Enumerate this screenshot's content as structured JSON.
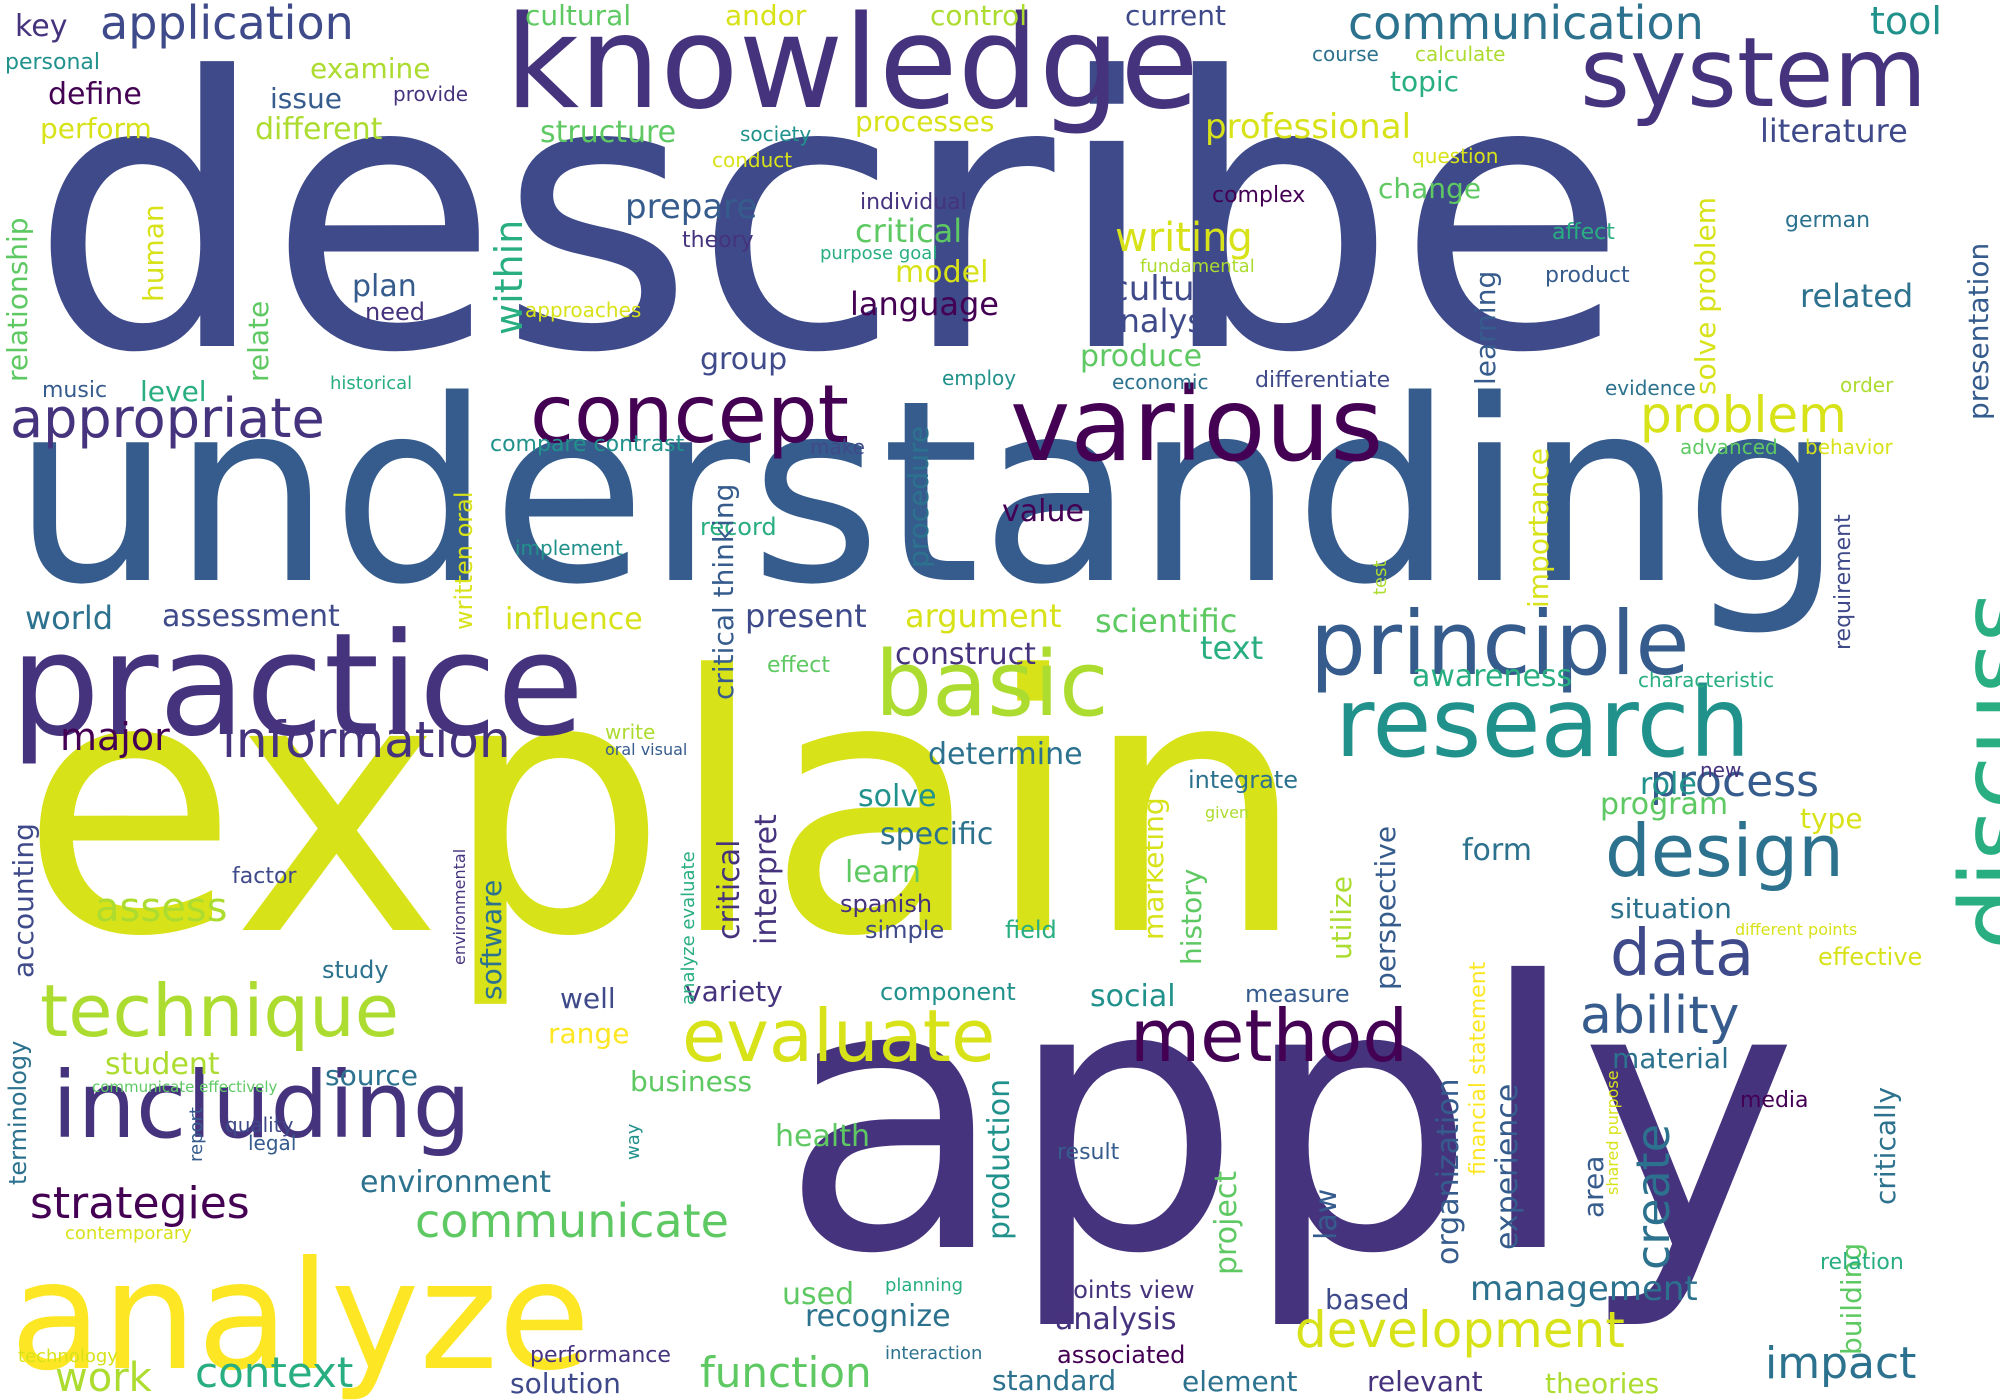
{
  "palette": {
    "v0": "#440154",
    "v1": "#46337e",
    "v2": "#3f4a8a",
    "v3": "#365c8d",
    "v4": "#2c728e",
    "v5": "#21918c",
    "v6": "#28ae80",
    "v7": "#5ec962",
    "v8": "#addc30",
    "v9": "#d8e219",
    "v10": "#fde725"
  },
  "words": [
    {
      "text": "describe",
      "color": "v2"
    },
    {
      "text": "understanding",
      "color": "v3"
    },
    {
      "text": "explain",
      "color": "v9"
    },
    {
      "text": "apply",
      "color": "v1"
    },
    {
      "text": "knowledge",
      "color": "v1"
    },
    {
      "text": "practice",
      "color": "v1"
    },
    {
      "text": "various",
      "color": "v0"
    },
    {
      "text": "analyze",
      "color": "v10"
    },
    {
      "text": "system",
      "color": "v1"
    },
    {
      "text": "concept",
      "color": "v0"
    },
    {
      "text": "principle",
      "color": "v3"
    },
    {
      "text": "research",
      "color": "v5"
    },
    {
      "text": "basic",
      "color": "v8"
    },
    {
      "text": "discuss",
      "color": "v6"
    },
    {
      "text": "including",
      "color": "v1"
    },
    {
      "text": "technique",
      "color": "v8"
    },
    {
      "text": "evaluate",
      "color": "v9"
    },
    {
      "text": "method",
      "color": "v0"
    },
    {
      "text": "design",
      "color": "v4"
    },
    {
      "text": "data",
      "color": "v2"
    },
    {
      "text": "appropriate",
      "color": "v1"
    },
    {
      "text": "information",
      "color": "v1"
    },
    {
      "text": "communication",
      "color": "v4"
    },
    {
      "text": "application",
      "color": "v2"
    },
    {
      "text": "problem",
      "color": "v9"
    },
    {
      "text": "development",
      "color": "v9"
    },
    {
      "text": "ability",
      "color": "v3"
    },
    {
      "text": "communicate",
      "color": "v7"
    },
    {
      "text": "strategies",
      "color": "v0"
    },
    {
      "text": "process",
      "color": "v3"
    },
    {
      "text": "context",
      "color": "v6"
    },
    {
      "text": "function",
      "color": "v7"
    },
    {
      "text": "impact",
      "color": "v4"
    },
    {
      "text": "create",
      "color": "v4"
    },
    {
      "text": "writing",
      "color": "v9"
    },
    {
      "text": "tool",
      "color": "v5"
    },
    {
      "text": "professional",
      "color": "v9"
    },
    {
      "text": "work",
      "color": "v8"
    },
    {
      "text": "assess",
      "color": "v8"
    },
    {
      "text": "management",
      "color": "v4"
    },
    {
      "text": "major",
      "color": "v0"
    },
    {
      "text": "culture",
      "color": "v2"
    },
    {
      "text": "literature",
      "color": "v2"
    },
    {
      "text": "critical",
      "color": "v7"
    },
    {
      "text": "within",
      "color": "v6"
    },
    {
      "text": "prepare",
      "color": "v3"
    },
    {
      "text": "model",
      "color": "v9"
    },
    {
      "text": "language",
      "color": "v0"
    },
    {
      "text": "analyse",
      "color": "v2"
    },
    {
      "text": "produce",
      "color": "v7"
    },
    {
      "text": "related",
      "color": "v4"
    },
    {
      "text": "world",
      "color": "v4"
    },
    {
      "text": "assessment",
      "color": "v2"
    },
    {
      "text": "present",
      "color": "v2"
    },
    {
      "text": "argument",
      "color": "v9"
    },
    {
      "text": "scientific",
      "color": "v7"
    },
    {
      "text": "construct",
      "color": "v1"
    },
    {
      "text": "text",
      "color": "v6"
    },
    {
      "text": "awareness",
      "color": "v6"
    },
    {
      "text": "influence",
      "color": "v9"
    },
    {
      "text": "determine",
      "color": "v4"
    },
    {
      "text": "solve",
      "color": "v5"
    },
    {
      "text": "specific",
      "color": "v4"
    },
    {
      "text": "learn",
      "color": "v7"
    },
    {
      "text": "role",
      "color": "v5"
    },
    {
      "text": "program",
      "color": "v7"
    },
    {
      "text": "type",
      "color": "v9"
    },
    {
      "text": "form",
      "color": "v4"
    },
    {
      "text": "situation",
      "color": "v4"
    },
    {
      "text": "variety",
      "color": "v1"
    },
    {
      "text": "well",
      "color": "v2"
    },
    {
      "text": "range",
      "color": "v10"
    },
    {
      "text": "social",
      "color": "v5"
    },
    {
      "text": "material",
      "color": "v4"
    },
    {
      "text": "student",
      "color": "v8"
    },
    {
      "text": "source",
      "color": "v4"
    },
    {
      "text": "business",
      "color": "v7"
    },
    {
      "text": "health",
      "color": "v7"
    },
    {
      "text": "environment",
      "color": "v4"
    },
    {
      "text": "recognize",
      "color": "v4"
    },
    {
      "text": "used",
      "color": "v7"
    },
    {
      "text": "analysis",
      "color": "v1"
    },
    {
      "text": "based",
      "color": "v2"
    },
    {
      "text": "standard",
      "color": "v4"
    },
    {
      "text": "element",
      "color": "v4"
    },
    {
      "text": "relevant",
      "color": "v1"
    },
    {
      "text": "theories",
      "color": "v8"
    },
    {
      "text": "solution",
      "color": "v2"
    },
    {
      "text": "effective",
      "color": "v9"
    },
    {
      "text": "key",
      "color": "v1"
    },
    {
      "text": "examine",
      "color": "v8"
    },
    {
      "text": "issue",
      "color": "v3"
    },
    {
      "text": "define",
      "color": "v0"
    },
    {
      "text": "perform",
      "color": "v9"
    },
    {
      "text": "different",
      "color": "v8"
    },
    {
      "text": "structure",
      "color": "v7"
    },
    {
      "text": "cultural",
      "color": "v7"
    },
    {
      "text": "andor",
      "color": "v9"
    },
    {
      "text": "control",
      "color": "v8"
    },
    {
      "text": "current",
      "color": "v2"
    },
    {
      "text": "topic",
      "color": "v6"
    },
    {
      "text": "processes",
      "color": "v9"
    },
    {
      "text": "change",
      "color": "v7"
    },
    {
      "text": "plan",
      "color": "v3"
    },
    {
      "text": "need",
      "color": "v1"
    },
    {
      "text": "human",
      "color": "v9"
    },
    {
      "text": "relate",
      "color": "v7"
    },
    {
      "text": "relationship",
      "color": "v7"
    },
    {
      "text": "group",
      "color": "v2"
    },
    {
      "text": "level",
      "color": "v6"
    },
    {
      "text": "music",
      "color": "v3"
    },
    {
      "text": "compare contrast",
      "color": "v5"
    },
    {
      "text": "written oral",
      "color": "v9"
    },
    {
      "text": "record",
      "color": "v6"
    },
    {
      "text": "implement",
      "color": "v5"
    },
    {
      "text": "value",
      "color": "v0"
    },
    {
      "text": "procedure",
      "color": "v4"
    },
    {
      "text": "critical thinking",
      "color": "v3"
    },
    {
      "text": "learning",
      "color": "v3"
    },
    {
      "text": "solve problem",
      "color": "v9"
    },
    {
      "text": "importance",
      "color": "v9"
    },
    {
      "text": "presentation",
      "color": "v3"
    },
    {
      "text": "requirement",
      "color": "v2"
    },
    {
      "text": "marketing",
      "color": "v9"
    },
    {
      "text": "history",
      "color": "v7"
    },
    {
      "text": "utilize",
      "color": "v8"
    },
    {
      "text": "perspective",
      "color": "v3"
    },
    {
      "text": "accounting",
      "color": "v2"
    },
    {
      "text": "software",
      "color": "v4"
    },
    {
      "text": "interpret",
      "color": "v1"
    },
    {
      "text": "critical",
      "color": "v1"
    },
    {
      "text": "integrate",
      "color": "v4"
    },
    {
      "text": "factor",
      "color": "v2"
    },
    {
      "text": "spanish",
      "color": "v1"
    },
    {
      "text": "simple",
      "color": "v2"
    },
    {
      "text": "field",
      "color": "v6"
    },
    {
      "text": "component",
      "color": "v5"
    },
    {
      "text": "measure",
      "color": "v3"
    },
    {
      "text": "study",
      "color": "v4"
    },
    {
      "text": "organization",
      "color": "v3"
    },
    {
      "text": "experience",
      "color": "v3"
    },
    {
      "text": "financial statement",
      "color": "v10"
    },
    {
      "text": "area",
      "color": "v3"
    },
    {
      "text": "critically",
      "color": "v4"
    },
    {
      "text": "building",
      "color": "v7"
    },
    {
      "text": "law",
      "color": "v3"
    },
    {
      "text": "project",
      "color": "v7"
    },
    {
      "text": "production",
      "color": "v5"
    },
    {
      "text": "terminology",
      "color": "v4"
    },
    {
      "text": "quality",
      "color": "v2"
    },
    {
      "text": "legal",
      "color": "v3"
    },
    {
      "text": "report",
      "color": "v3"
    },
    {
      "text": "way",
      "color": "v5"
    },
    {
      "text": "result",
      "color": "v3"
    },
    {
      "text": "points view",
      "color": "v1"
    },
    {
      "text": "associated",
      "color": "v0"
    },
    {
      "text": "performance",
      "color": "v1"
    },
    {
      "text": "interaction",
      "color": "v4"
    },
    {
      "text": "planning",
      "color": "v6"
    },
    {
      "text": "relation",
      "color": "v6"
    },
    {
      "text": "media",
      "color": "v0"
    },
    {
      "text": "personal",
      "color": "v5"
    },
    {
      "text": "provide",
      "color": "v1"
    },
    {
      "text": "society",
      "color": "v5"
    },
    {
      "text": "conduct",
      "color": "v9"
    },
    {
      "text": "course",
      "color": "v4"
    },
    {
      "text": "calculate",
      "color": "v8"
    },
    {
      "text": "question",
      "color": "v9"
    },
    {
      "text": "individual",
      "color": "v1"
    },
    {
      "text": "theory",
      "color": "v1"
    },
    {
      "text": "purpose goal",
      "color": "v6"
    },
    {
      "text": "complex",
      "color": "v0"
    },
    {
      "text": "affect",
      "color": "v6"
    },
    {
      "text": "german",
      "color": "v4"
    },
    {
      "text": "fundamental",
      "color": "v8"
    },
    {
      "text": "product",
      "color": "v3"
    },
    {
      "text": "approaches",
      "color": "v9"
    },
    {
      "text": "historical",
      "color": "v6"
    },
    {
      "text": "employ",
      "color": "v5"
    },
    {
      "text": "economic",
      "color": "v4"
    },
    {
      "text": "differentiate",
      "color": "v2"
    },
    {
      "text": "evidence",
      "color": "v4"
    },
    {
      "text": "order",
      "color": "v8"
    },
    {
      "text": "advanced",
      "color": "v7"
    },
    {
      "text": "behavior",
      "color": "v9"
    },
    {
      "text": "make",
      "color": "v2"
    },
    {
      "text": "effect",
      "color": "v7"
    },
    {
      "text": "characteristic",
      "color": "v6"
    },
    {
      "text": "write",
      "color": "v8"
    },
    {
      "text": "oral visual",
      "color": "v3"
    },
    {
      "text": "new",
      "color": "v1"
    },
    {
      "text": "given",
      "color": "v8"
    },
    {
      "text": "different points",
      "color": "v9"
    },
    {
      "text": "test",
      "color": "v8"
    },
    {
      "text": "environmental",
      "color": "v1"
    },
    {
      "text": "analyze evaluate",
      "color": "v6"
    },
    {
      "text": "communicate effectively",
      "color": "v7"
    },
    {
      "text": "shared purpose",
      "color": "v9"
    },
    {
      "text": "contemporary",
      "color": "v9"
    },
    {
      "text": "technology",
      "color": "v9"
    }
  ]
}
